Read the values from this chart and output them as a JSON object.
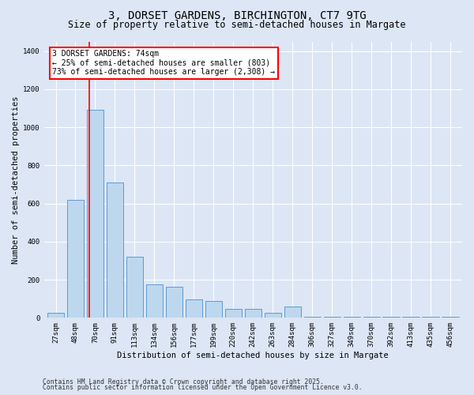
{
  "title_line1": "3, DORSET GARDENS, BIRCHINGTON, CT7 9TG",
  "title_line2": "Size of property relative to semi-detached houses in Margate",
  "xlabel": "Distribution of semi-detached houses by size in Margate",
  "ylabel": "Number of semi-detached properties",
  "categories": [
    "27sqm",
    "48sqm",
    "70sqm",
    "91sqm",
    "113sqm",
    "134sqm",
    "156sqm",
    "177sqm",
    "199sqm",
    "220sqm",
    "242sqm",
    "263sqm",
    "284sqm",
    "306sqm",
    "327sqm",
    "349sqm",
    "370sqm",
    "392sqm",
    "413sqm",
    "435sqm",
    "456sqm"
  ],
  "values": [
    27,
    620,
    1090,
    710,
    320,
    175,
    165,
    95,
    90,
    45,
    45,
    25,
    60,
    5,
    5,
    5,
    5,
    5,
    5,
    5,
    5
  ],
  "bar_color": "#bdd7ee",
  "bar_edge_color": "#5b9bd5",
  "red_line_color": "red",
  "annotation_text": "3 DORSET GARDENS: 74sqm\n← 25% of semi-detached houses are smaller (803)\n73% of semi-detached houses are larger (2,308) →",
  "annotation_box_color": "white",
  "annotation_box_edge": "red",
  "ylim": [
    0,
    1450
  ],
  "yticks": [
    0,
    200,
    400,
    600,
    800,
    1000,
    1200,
    1400
  ],
  "bg_color": "#dce6f5",
  "plot_bg_color": "#dce6f5",
  "grid_color": "#ffffff",
  "footer_line1": "Contains HM Land Registry data © Crown copyright and database right 2025.",
  "footer_line2": "Contains public sector information licensed under the Open Government Licence v3.0.",
  "title_fontsize": 10,
  "subtitle_fontsize": 8.5,
  "axis_label_fontsize": 7.5,
  "tick_fontsize": 6.5,
  "annotation_fontsize": 7,
  "footer_fontsize": 5.8,
  "red_line_x": 1.72
}
